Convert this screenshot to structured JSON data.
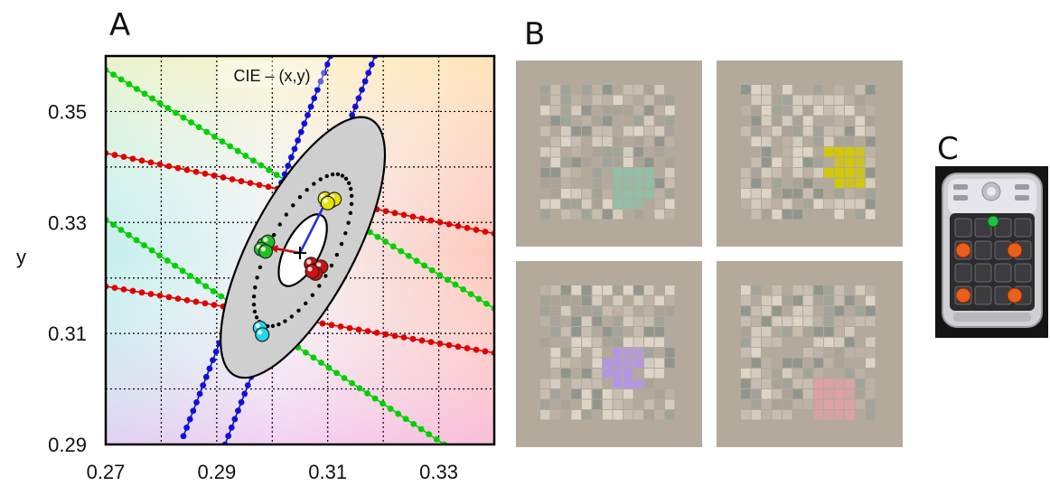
{
  "panels": {
    "a": "A",
    "b": "B",
    "c": "C"
  },
  "chart_data": {
    "type": "scatter",
    "title": "CIE – (x,y)",
    "xlabel": "",
    "ylabel": "y",
    "xlim": [
      0.27,
      0.34
    ],
    "ylim": [
      0.29,
      0.36
    ],
    "xticks": [
      "0.27",
      "0.29",
      "0.31",
      "0.33"
    ],
    "yticks": [
      "0.29",
      "0.31",
      "0.33",
      "0.35"
    ],
    "grid": true,
    "center": {
      "x": 0.305,
      "y": 0.3245
    },
    "lines": [
      {
        "color": "#00d000",
        "points": [
          [
            0.27,
            0.3575
          ],
          [
            0.34,
            0.3145
          ]
        ]
      },
      {
        "color": "#e00000",
        "points": [
          [
            0.27,
            0.3425
          ],
          [
            0.34,
            0.328
          ]
        ]
      },
      {
        "color": "#00d000",
        "points": [
          [
            0.27,
            0.3305
          ],
          [
            0.331,
            0.29
          ]
        ]
      },
      {
        "color": "#e00000",
        "points": [
          [
            0.27,
            0.3185
          ],
          [
            0.34,
            0.3065
          ]
        ]
      },
      {
        "color": "#1010d8",
        "points": [
          [
            0.284,
            0.2915
          ],
          [
            0.3105,
            0.36
          ]
        ]
      },
      {
        "color": "#1010d8",
        "points": [
          [
            0.2915,
            0.29
          ],
          [
            0.3185,
            0.36
          ]
        ]
      }
    ],
    "points": [
      {
        "group": "yellow",
        "color": "#e8e000",
        "xy": [
          [
            0.3095,
            0.3343
          ],
          [
            0.3105,
            0.3338
          ],
          [
            0.3112,
            0.3342
          ],
          [
            0.31,
            0.3335
          ]
        ]
      },
      {
        "group": "green",
        "color": "#20c020",
        "xy": [
          [
            0.2985,
            0.326
          ],
          [
            0.2992,
            0.3265
          ],
          [
            0.298,
            0.3252
          ],
          [
            0.2988,
            0.3248
          ]
        ]
      },
      {
        "group": "red",
        "color": "#d01010",
        "xy": [
          [
            0.307,
            0.3225
          ],
          [
            0.308,
            0.3215
          ],
          [
            0.3088,
            0.322
          ],
          [
            0.3078,
            0.3208
          ],
          [
            0.3072,
            0.3212
          ]
        ]
      },
      {
        "group": "cyan",
        "color": "#20d8e8",
        "xy": [
          [
            0.2978,
            0.311
          ],
          [
            0.2982,
            0.3098
          ]
        ]
      }
    ],
    "ellipses": [
      {
        "cx": 0.3055,
        "cy": 0.3255,
        "rx": 0.0075,
        "ry": 0.0275,
        "fill": "#cfcfcf",
        "stroke": "#000"
      },
      {
        "cx": 0.3055,
        "cy": 0.325,
        "rx": 0.0047,
        "ry": 0.016,
        "fill": "none",
        "stroke": "#000",
        "dotted": true
      },
      {
        "cx": 0.3055,
        "cy": 0.325,
        "rx": 0.0025,
        "ry": 0.0075,
        "fill": "#ffffff",
        "stroke": "#000"
      }
    ],
    "arrows": [
      {
        "color": "#2030e0",
        "from": [
          0.305,
          0.3245
        ],
        "to": [
          0.3098,
          0.334
        ]
      },
      {
        "color": "#c01010",
        "from": [
          0.305,
          0.3245
        ],
        "to": [
          0.2995,
          0.3255
        ]
      }
    ]
  },
  "stimuli": [
    {
      "name": "green",
      "color": "#8fc0a8"
    },
    {
      "name": "yellow",
      "color": "#d4c900"
    },
    {
      "name": "purple",
      "color": "#b496e6"
    },
    {
      "name": "pink",
      "color": "#e0a0a6"
    }
  ]
}
